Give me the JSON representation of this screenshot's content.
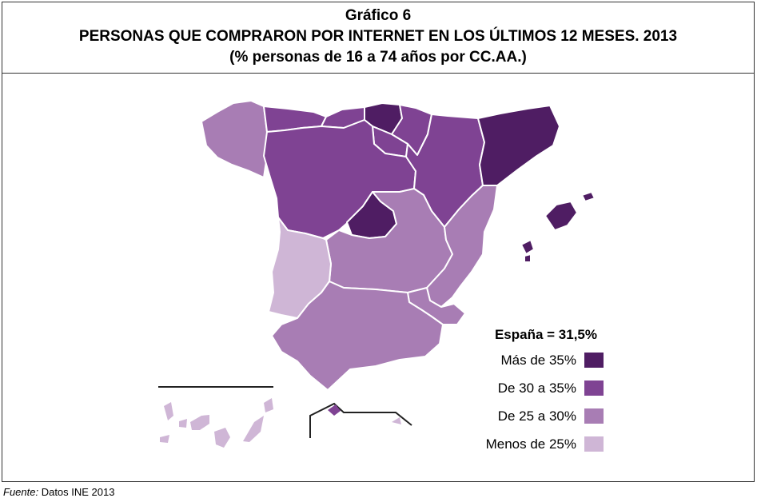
{
  "header": {
    "figure_label": "Gráfico 6",
    "title": "PERSONAS QUE COMPRARON POR INTERNET EN LOS ÚLTIMOS 12 MESES. 2013",
    "subtitle": "(% personas de 16 a 74 años por CC.AA.)"
  },
  "colors": {
    "mas_35": "#4f1d63",
    "de_30_35": "#7f4393",
    "de_25_30": "#a87db4",
    "menos_25": "#cfb6d6",
    "border": "#ffffff"
  },
  "legend": {
    "total": "España = 31,5%",
    "items": [
      {
        "label": "Más de 35%",
        "color": "#4f1d63"
      },
      {
        "label": "De 30 a 35%",
        "color": "#7f4393"
      },
      {
        "label": "De 25 a 30%",
        "color": "#a87db4"
      },
      {
        "label": "Menos de 25%",
        "color": "#cfb6d6"
      }
    ]
  },
  "footer": {
    "source_label": "Fuente:",
    "source_text": " Datos INE 2013"
  }
}
